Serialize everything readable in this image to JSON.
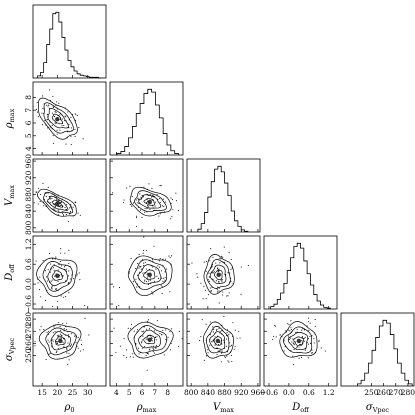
{
  "chart_data": {
    "type": "corner",
    "params": [
      {
        "key": "rho0",
        "symbol": "ρ",
        "sub": "0",
        "range": [
          12,
          36
        ],
        "ticks": [
          15,
          20,
          25,
          30
        ]
      },
      {
        "key": "rhomax",
        "symbol": "ρ",
        "sub": "max",
        "range": [
          3.5,
          9.2
        ],
        "ticks": [
          4,
          5,
          6,
          7,
          8
        ]
      },
      {
        "key": "Vmax",
        "symbol": "V",
        "sub": "max",
        "range": [
          790,
          965
        ],
        "ticks": [
          800,
          840,
          880,
          920,
          960
        ]
      },
      {
        "key": "Doff",
        "symbol": "D",
        "sub": "off",
        "range": [
          -0.75,
          1.45
        ],
        "ticks": [
          -0.6,
          0.0,
          0.6,
          1.2
        ]
      },
      {
        "key": "sigma",
        "symbol": "σ",
        "sub": "V_pec",
        "range": [
          225,
          285
        ],
        "ticks": [
          250,
          260,
          270,
          280
        ]
      }
    ],
    "diag_tick_labels": [
      [
        "15",
        "20",
        "25",
        "30"
      ],
      [
        "4",
        "5",
        "6",
        "7",
        "8"
      ],
      [
        "800",
        "840",
        "880",
        "920",
        "960"
      ],
      [
        "−0.6",
        "0.0",
        "0.6",
        "1.2"
      ],
      [
        "250",
        "260",
        "270",
        "280"
      ]
    ],
    "histograms": [
      {
        "param": "rho0",
        "bins": [
          14,
          15,
          16,
          17,
          18,
          19,
          20,
          21,
          22,
          23,
          24,
          25,
          26,
          27,
          28,
          29,
          30,
          31,
          32,
          33,
          34
        ],
        "counts": [
          3,
          8,
          22,
          48,
          70,
          92,
          94,
          80,
          58,
          40,
          25,
          16,
          10,
          6,
          4,
          3,
          2,
          1,
          1,
          1,
          0
        ]
      },
      {
        "param": "rhomax",
        "bins": [
          4.2,
          4.5,
          4.8,
          5.1,
          5.4,
          5.7,
          6.0,
          6.3,
          6.6,
          6.9,
          7.2,
          7.5,
          7.8,
          8.1,
          8.4,
          8.7
        ],
        "counts": [
          2,
          5,
          12,
          24,
          40,
          58,
          72,
          86,
          92,
          88,
          70,
          52,
          30,
          14,
          6,
          2
        ]
      },
      {
        "param": "Vmax",
        "bins": [
          820,
          828,
          836,
          844,
          852,
          860,
          868,
          876,
          884,
          892,
          900,
          908,
          916,
          924,
          932
        ],
        "counts": [
          4,
          12,
          28,
          50,
          72,
          90,
          94,
          86,
          70,
          52,
          30,
          16,
          8,
          3,
          1
        ]
      },
      {
        "param": "Doff",
        "bins": [
          -0.5,
          -0.4,
          -0.3,
          -0.2,
          -0.1,
          0.0,
          0.1,
          0.2,
          0.3,
          0.4,
          0.5,
          0.6,
          0.7,
          0.8,
          0.9,
          1.0,
          1.1,
          1.2
        ],
        "counts": [
          3,
          6,
          12,
          20,
          32,
          48,
          64,
          78,
          82,
          76,
          60,
          44,
          30,
          18,
          10,
          5,
          2,
          1
        ]
      },
      {
        "param": "sigma",
        "bins": [
          240,
          243,
          246,
          249,
          252,
          255,
          258,
          261,
          264,
          267,
          270,
          273,
          276,
          279,
          282
        ],
        "counts": [
          3,
          8,
          18,
          32,
          50,
          68,
          84,
          92,
          88,
          72,
          52,
          32,
          18,
          8,
          3
        ]
      }
    ],
    "pairs": [
      {
        "x": "rho0",
        "y": "rhomax",
        "center": [
          20,
          6.3
        ],
        "sx": 3.2,
        "sy": 0.75,
        "rho": -0.55
      },
      {
        "x": "rho0",
        "y": "Vmax",
        "center": [
          20,
          858
        ],
        "sx": 3.2,
        "sy": 16,
        "rho": -0.65
      },
      {
        "x": "rhomax",
        "y": "Vmax",
        "center": [
          6.6,
          862
        ],
        "sx": 0.8,
        "sy": 16,
        "rho": -0.3
      },
      {
        "x": "rho0",
        "y": "Doff",
        "center": [
          20,
          0.25
        ],
        "sx": 3.2,
        "sy": 0.28,
        "rho": 0.0
      },
      {
        "x": "rhomax",
        "y": "Doff",
        "center": [
          6.6,
          0.28
        ],
        "sx": 0.85,
        "sy": 0.28,
        "rho": 0.05
      },
      {
        "x": "Vmax",
        "y": "Doff",
        "center": [
          866,
          0.28
        ],
        "sx": 18,
        "sy": 0.28,
        "rho": 0.0
      },
      {
        "x": "rho0",
        "y": "sigma",
        "center": [
          21,
          262
        ],
        "sx": 3.2,
        "sy": 7,
        "rho": 0.05
      },
      {
        "x": "rhomax",
        "y": "sigma",
        "center": [
          6.6,
          263
        ],
        "sx": 0.85,
        "sy": 7,
        "rho": 0.0
      },
      {
        "x": "Vmax",
        "y": "sigma",
        "center": [
          864,
          262
        ],
        "sx": 18,
        "sy": 7,
        "rho": -0.05
      },
      {
        "x": "Doff",
        "y": "sigma",
        "center": [
          0.3,
          262
        ],
        "sx": 0.28,
        "sy": 7,
        "rho": 0.0
      }
    ],
    "contour_levels_sigma": [
      0.5,
      1.0,
      1.5,
      2.0
    ],
    "contour_fills": [
      "#5a5a5a",
      "#8a8a8a",
      "#b8b8b8",
      "#e2e2e2"
    ],
    "grid": false,
    "legend": "none"
  }
}
